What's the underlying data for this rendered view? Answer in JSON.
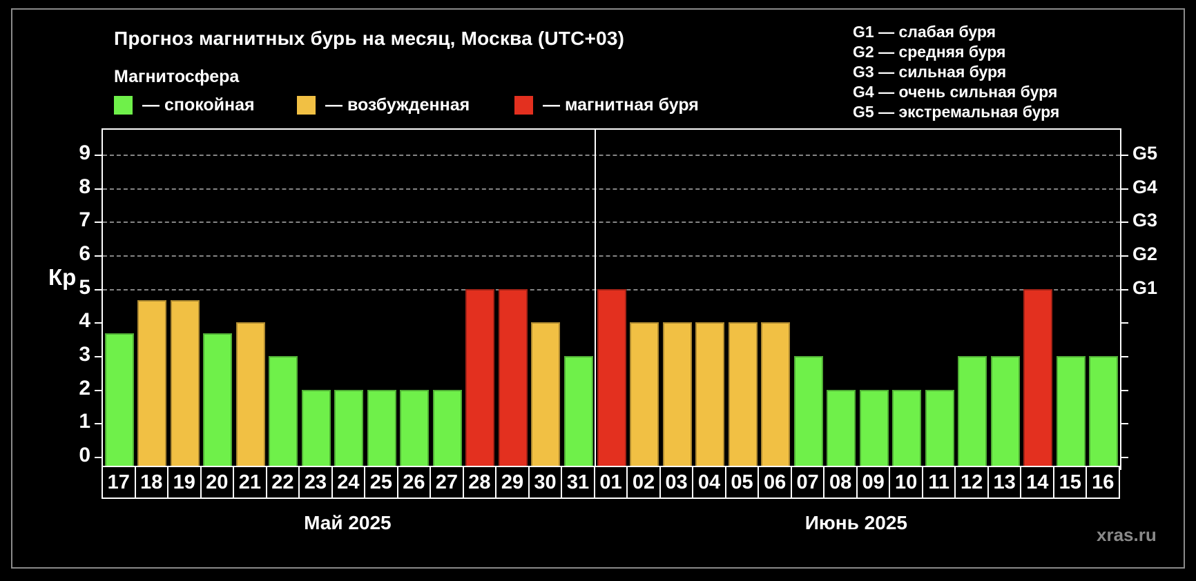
{
  "title": "Прогноз магнитных бурь на месяц, Москва (UTC+03)",
  "magnetosphere": {
    "title": "Магнитосфера",
    "items": [
      {
        "key": "quiet",
        "label": "— спокойная"
      },
      {
        "key": "unsettled",
        "label": "— возбужденная"
      },
      {
        "key": "storm",
        "label": "— магнитная буря"
      }
    ]
  },
  "g_legend": [
    "G1 — слабая буря",
    "G2 — средняя буря",
    "G3 — сильная буря",
    "G4 — очень сильная буря",
    "G5 — экстремальная буря"
  ],
  "watermark": "xras.ru",
  "colors": {
    "quiet": "#6ff04a",
    "unsettled": "#f1c044",
    "storm": "#e3301f",
    "grid": "#a8a8a8",
    "axis": "#ffffff",
    "frame": "#8a8a8a",
    "watermark": "#8a8a8a",
    "background": "#000000"
  },
  "chart_data": {
    "type": "bar",
    "title": "Прогноз магнитных бурь на месяц, Москва (UTC+03)",
    "ylabel": "Кр",
    "yticks": [
      0,
      1,
      2,
      3,
      4,
      5,
      6,
      7,
      8,
      9
    ],
    "ylim": [
      0,
      9.5
    ],
    "grid": "dashed horizontal at Kp 5-9 only",
    "legend_position": "top-left",
    "gridlines": [
      5,
      6,
      7,
      8,
      9
    ],
    "right_axis": [
      {
        "label": "G5",
        "kp": 9
      },
      {
        "label": "G4",
        "kp": 8
      },
      {
        "label": "G3",
        "kp": 7
      },
      {
        "label": "G2",
        "kp": 6
      },
      {
        "label": "G1",
        "kp": 5
      }
    ],
    "months": [
      {
        "label": "Май 2025",
        "count": 15
      },
      {
        "label": "Июнь 2025",
        "count": 16
      }
    ],
    "days": [
      {
        "day": "17",
        "month": "Май 2025",
        "kp": 3.67,
        "status": "quiet"
      },
      {
        "day": "18",
        "month": "Май 2025",
        "kp": 4.67,
        "status": "unsettled"
      },
      {
        "day": "19",
        "month": "Май 2025",
        "kp": 4.67,
        "status": "unsettled"
      },
      {
        "day": "20",
        "month": "Май 2025",
        "kp": 3.67,
        "status": "quiet"
      },
      {
        "day": "21",
        "month": "Май 2025",
        "kp": 4,
        "status": "unsettled"
      },
      {
        "day": "22",
        "month": "Май 2025",
        "kp": 3,
        "status": "quiet"
      },
      {
        "day": "23",
        "month": "Май 2025",
        "kp": 2,
        "status": "quiet"
      },
      {
        "day": "24",
        "month": "Май 2025",
        "kp": 2,
        "status": "quiet"
      },
      {
        "day": "25",
        "month": "Май 2025",
        "kp": 2,
        "status": "quiet"
      },
      {
        "day": "26",
        "month": "Май 2025",
        "kp": 2,
        "status": "quiet"
      },
      {
        "day": "27",
        "month": "Май 2025",
        "kp": 2,
        "status": "quiet"
      },
      {
        "day": "28",
        "month": "Май 2025",
        "kp": 5,
        "status": "storm"
      },
      {
        "day": "29",
        "month": "Май 2025",
        "kp": 5,
        "status": "storm"
      },
      {
        "day": "30",
        "month": "Май 2025",
        "kp": 4,
        "status": "unsettled"
      },
      {
        "day": "31",
        "month": "Май 2025",
        "kp": 3,
        "status": "quiet"
      },
      {
        "day": "01",
        "month": "Июнь 2025",
        "kp": 5,
        "status": "storm"
      },
      {
        "day": "02",
        "month": "Июнь 2025",
        "kp": 4,
        "status": "unsettled"
      },
      {
        "day": "03",
        "month": "Июнь 2025",
        "kp": 4,
        "status": "unsettled"
      },
      {
        "day": "04",
        "month": "Июнь 2025",
        "kp": 4,
        "status": "unsettled"
      },
      {
        "day": "05",
        "month": "Июнь 2025",
        "kp": 4,
        "status": "unsettled"
      },
      {
        "day": "06",
        "month": "Июнь 2025",
        "kp": 4,
        "status": "unsettled"
      },
      {
        "day": "07",
        "month": "Июнь 2025",
        "kp": 3,
        "status": "quiet"
      },
      {
        "day": "08",
        "month": "Июнь 2025",
        "kp": 2,
        "status": "quiet"
      },
      {
        "day": "09",
        "month": "Июнь 2025",
        "kp": 2,
        "status": "quiet"
      },
      {
        "day": "10",
        "month": "Июнь 2025",
        "kp": 2,
        "status": "quiet"
      },
      {
        "day": "11",
        "month": "Июнь 2025",
        "kp": 2,
        "status": "quiet"
      },
      {
        "day": "12",
        "month": "Июнь 2025",
        "kp": 3,
        "status": "quiet"
      },
      {
        "day": "13",
        "month": "Июнь 2025",
        "kp": 3,
        "status": "quiet"
      },
      {
        "day": "14",
        "month": "Июнь 2025",
        "kp": 5,
        "status": "storm"
      },
      {
        "day": "15",
        "month": "Июнь 2025",
        "kp": 3,
        "status": "quiet"
      },
      {
        "day": "16",
        "month": "Июнь 2025",
        "kp": 3,
        "status": "quiet"
      }
    ]
  }
}
